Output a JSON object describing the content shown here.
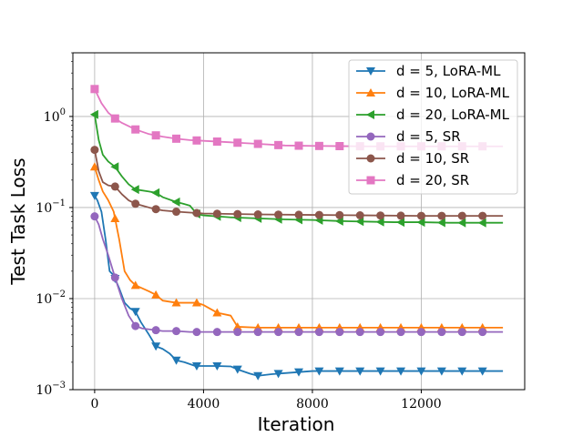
{
  "chart_data": {
    "type": "line",
    "title": "",
    "xlabel": "Iteration",
    "ylabel": "Test Task Loss",
    "yscale": "log",
    "xlim": [
      -800,
      15800
    ],
    "ylim": [
      0.001,
      5
    ],
    "xticks": [
      0,
      4000,
      8000,
      12000
    ],
    "xtick_labels": [
      "0",
      "4000",
      "8000",
      "12000"
    ],
    "ytick_exponents": [
      -3,
      -2,
      -1,
      0
    ],
    "ytick_base": "10",
    "grid": true,
    "legend_position": "top-right",
    "series": [
      {
        "name": "d = 5, LoRA-ML",
        "color": "#1f77b4",
        "marker": "triangle-down",
        "x": [
          0,
          100,
          250,
          400,
          550,
          700,
          900,
          1100,
          1300,
          1500,
          1700,
          2000,
          2250,
          2500,
          2750,
          3000,
          3300,
          3700,
          4200,
          4500,
          5000,
          5300,
          5700,
          6000,
          6500,
          7000,
          7500,
          8000,
          9000,
          10000,
          11000,
          12000,
          13000,
          14000,
          15000
        ],
        "y": [
          0.135,
          0.12,
          0.09,
          0.045,
          0.02,
          0.018,
          0.013,
          0.009,
          0.0078,
          0.0072,
          0.0055,
          0.004,
          0.003,
          0.0028,
          0.0025,
          0.0021,
          0.002,
          0.00182,
          0.00182,
          0.00182,
          0.0018,
          0.00165,
          0.0015,
          0.00142,
          0.00148,
          0.00152,
          0.00156,
          0.0016,
          0.0016,
          0.0016,
          0.0016,
          0.0016,
          0.0016,
          0.0016,
          0.0016
        ],
        "marker_x": [
          0,
          750,
          1500,
          2250,
          3000,
          3750,
          4500,
          5250,
          6000,
          6750,
          7500,
          8250,
          9000,
          9750,
          10500,
          11250,
          12000,
          12750,
          13500,
          14250
        ]
      },
      {
        "name": "d = 10, LoRA-ML",
        "color": "#ff7f0e",
        "marker": "triangle-up",
        "x": [
          0,
          150,
          300,
          500,
          700,
          900,
          1100,
          1300,
          1500,
          2000,
          2250,
          2500,
          3000,
          3500,
          3750,
          4000,
          4500,
          5000,
          5250,
          6000,
          8000,
          10000,
          12000,
          14000,
          15000
        ],
        "y": [
          0.28,
          0.2,
          0.15,
          0.12,
          0.09,
          0.045,
          0.02,
          0.016,
          0.014,
          0.012,
          0.011,
          0.0095,
          0.009,
          0.009,
          0.009,
          0.0085,
          0.007,
          0.0065,
          0.0049,
          0.0048,
          0.0048,
          0.0048,
          0.0048,
          0.0048,
          0.0048
        ],
        "marker_x": [
          0,
          750,
          1500,
          2250,
          3000,
          3750,
          4500,
          5250,
          6000,
          6750,
          7500,
          8250,
          9000,
          9750,
          10500,
          11250,
          12000,
          12750,
          13500,
          14250
        ]
      },
      {
        "name": "d = 20, LoRA-ML",
        "color": "#2ca02c",
        "marker": "triangle-left",
        "x": [
          0,
          150,
          300,
          500,
          750,
          1000,
          1250,
          1500,
          2000,
          2250,
          2500,
          3000,
          3250,
          3500,
          3750,
          4000,
          4500,
          5000,
          6000,
          7000,
          8000,
          9000,
          10000,
          11000,
          12000,
          13000,
          14000,
          15000
        ],
        "y": [
          1.05,
          0.55,
          0.38,
          0.32,
          0.28,
          0.22,
          0.18,
          0.158,
          0.15,
          0.145,
          0.13,
          0.115,
          0.11,
          0.105,
          0.085,
          0.082,
          0.08,
          0.078,
          0.076,
          0.074,
          0.073,
          0.071,
          0.07,
          0.069,
          0.069,
          0.068,
          0.068,
          0.068
        ],
        "marker_x": [
          0,
          750,
          1500,
          2250,
          3000,
          3750,
          4500,
          5250,
          6000,
          6750,
          7500,
          8250,
          9000,
          9750,
          10500,
          11250,
          12000,
          12750,
          13500,
          14250
        ]
      },
      {
        "name": "d = 5, SR",
        "color": "#9467bd",
        "marker": "circle",
        "x": [
          0,
          150,
          300,
          500,
          750,
          1000,
          1250,
          1500,
          1750,
          2000,
          2250,
          2500,
          3000,
          3500,
          4000,
          5000,
          6000,
          8000,
          10000,
          12000,
          14000,
          15000
        ],
        "y": [
          0.08,
          0.065,
          0.045,
          0.03,
          0.017,
          0.01,
          0.0065,
          0.005,
          0.0047,
          0.0046,
          0.0045,
          0.0044,
          0.0044,
          0.0043,
          0.0043,
          0.0043,
          0.0043,
          0.0043,
          0.0043,
          0.0043,
          0.0043,
          0.0043
        ],
        "marker_x": [
          0,
          750,
          1500,
          2250,
          3000,
          3750,
          4500,
          5250,
          6000,
          6750,
          7500,
          8250,
          9000,
          9750,
          10500,
          11250,
          12000,
          12750,
          13500,
          14250
        ]
      },
      {
        "name": "d = 10, SR",
        "color": "#8c564b",
        "marker": "circle",
        "x": [
          0,
          150,
          300,
          500,
          750,
          1000,
          1250,
          1500,
          2000,
          2250,
          2500,
          3000,
          3500,
          4000,
          5000,
          6000,
          8000,
          10000,
          12000,
          14000,
          15000
        ],
        "y": [
          0.43,
          0.25,
          0.19,
          0.175,
          0.17,
          0.14,
          0.12,
          0.11,
          0.1,
          0.096,
          0.093,
          0.09,
          0.088,
          0.086,
          0.085,
          0.084,
          0.083,
          0.082,
          0.081,
          0.081,
          0.081
        ],
        "marker_x": [
          0,
          750,
          1500,
          2250,
          3000,
          3750,
          4500,
          5250,
          6000,
          6750,
          7500,
          8250,
          9000,
          9750,
          10500,
          11250,
          12000,
          12750,
          13500,
          14250
        ]
      },
      {
        "name": "d = 20, SR",
        "color": "#e377c2",
        "marker": "square",
        "x": [
          0,
          250,
          500,
          750,
          1000,
          1500,
          2000,
          2500,
          3000,
          3500,
          4000,
          5000,
          6000,
          7000,
          8000,
          10000,
          12000,
          14000,
          15000
        ],
        "y": [
          2.0,
          1.4,
          1.1,
          0.95,
          0.85,
          0.72,
          0.64,
          0.6,
          0.57,
          0.55,
          0.54,
          0.52,
          0.5,
          0.48,
          0.475,
          0.47,
          0.47,
          0.47,
          0.47
        ],
        "marker_x": [
          0,
          750,
          1500,
          2250,
          3000,
          3750,
          4500,
          5250,
          6000,
          6750,
          7500,
          8250,
          9000,
          9750,
          10500,
          11250,
          12000,
          12750,
          13500,
          14250
        ]
      }
    ]
  }
}
